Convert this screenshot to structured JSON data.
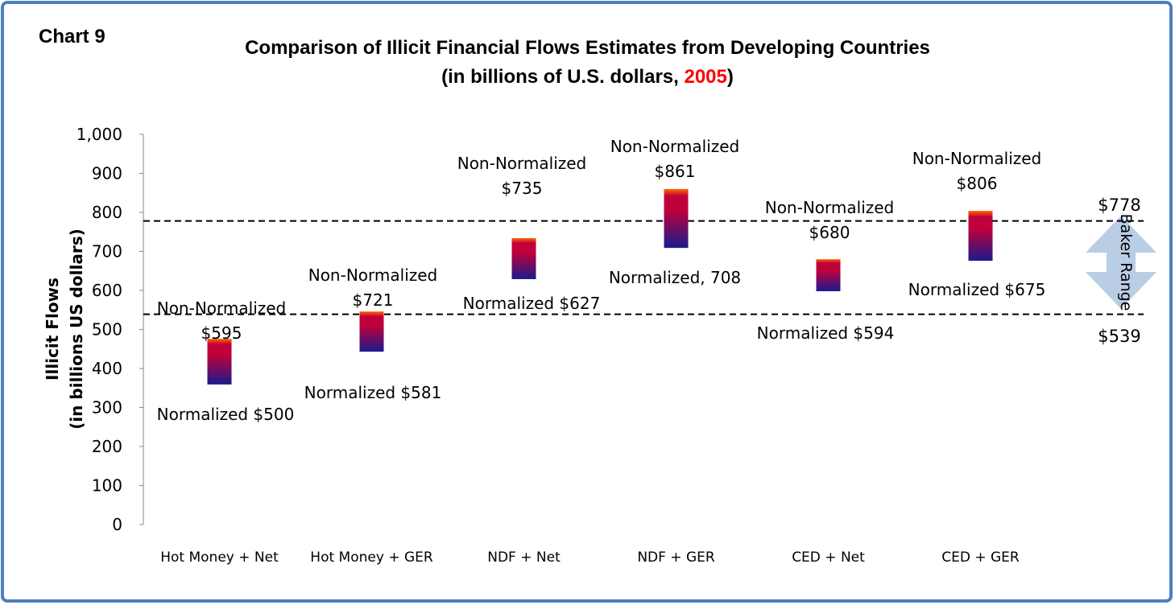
{
  "chart_data": {
    "type": "floating-bar",
    "label": "Chart 9",
    "title": "Comparison of Illicit Financial Flows Estimates from Developing Countries",
    "subtitle": [
      {
        "text": "(in billions of U.S. dollars, ",
        "color": "#000000"
      },
      {
        "text": "2005",
        "color": "#ff0000"
      },
      {
        "text": ")",
        "color": "#000000"
      }
    ],
    "y_label": [
      "Illicit Flows",
      "(in billions US dollars)"
    ],
    "categories": [
      "Hot Money + Net",
      "Hot Money + GER",
      "NDF + Net",
      "NDF + GER",
      "CED + Net",
      "CED + GER"
    ],
    "low": [
      359,
      443,
      629,
      709,
      598,
      676
    ],
    "high": [
      476,
      546,
      734,
      860,
      680,
      804
    ],
    "annotations_high": [
      "Non-Normalized $595",
      "Non-Normalized $721",
      "Non-Normalized $735",
      "Non-Normalized $861",
      "Non-Normalized $680",
      "Non-Normalized $806"
    ],
    "annotations_low": [
      "Normalized $500",
      "Normalized $581",
      "Normalized $627",
      "Normalized, 708",
      "Normalized $594",
      "Normalized $675"
    ],
    "colors": {
      "top": "#ff6a00",
      "mid": "#c0003a",
      "bottom": "#1a1a8c"
    },
    "ylim": [
      0,
      1000
    ],
    "yticks": [
      0,
      100,
      200,
      300,
      400,
      500,
      600,
      700,
      800,
      900,
      {
        "value": 1000,
        "label": "1,000"
      }
    ],
    "reference_lines": [
      {
        "value": 778,
        "label": "$778"
      },
      {
        "value": 539,
        "label": "$539"
      }
    ],
    "range_label": "Baker Range"
  }
}
